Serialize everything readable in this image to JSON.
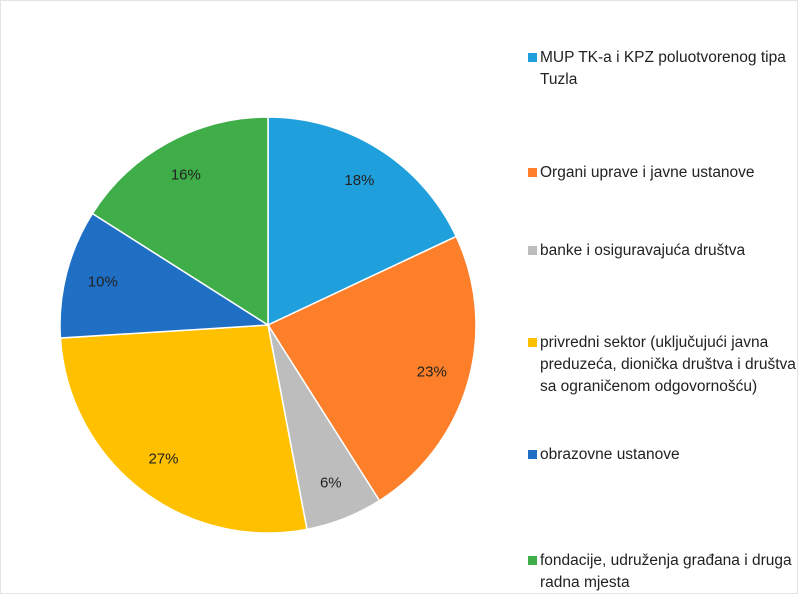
{
  "chart_data": {
    "type": "pie",
    "categories": [
      "MUP TK-a i KPZ poluotvorenog tipa Tuzla",
      "Organi uprave i javne ustanove",
      "banke i osiguravajuća društva",
      "privredni sektor (uključujući javna preduzeća, dionička društva i društva sa ograničenom odgovornošću)",
      "obrazovne ustanove",
      "fondacije, udruženja građana i druga radna mjesta"
    ],
    "values": [
      18,
      23,
      6,
      27,
      10,
      16
    ],
    "value_labels": [
      "18%",
      "23%",
      "6%",
      "27%",
      "10%",
      "16%"
    ],
    "colors": [
      "#1f9fdb",
      "#fd7f2a",
      "#bdbdbd",
      "#ffc000",
      "#1f6fc4",
      "#3fae49"
    ],
    "legend": "right"
  }
}
